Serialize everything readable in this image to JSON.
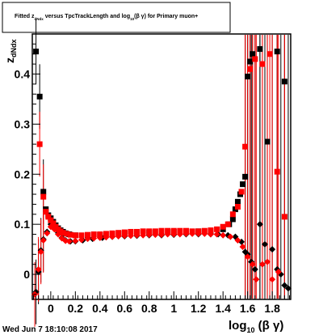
{
  "title_box": {
    "pre": "Fitted  z",
    "sub1": "dNdx",
    "mid": "  versus TpcTrackLength and log",
    "sub2": "10",
    "post": "(β γ) for Primary muon+"
  },
  "stamp": "Wed Jun  7 18:10:08 2017",
  "colors": {
    "series_black": "#000000",
    "series_red": "#ff0000",
    "frame": "#000000",
    "background": "#ffffff"
  },
  "chart_data": {
    "type": "scatter",
    "xlabel": {
      "main": "log",
      "sub": "10",
      "rest": " (β γ)"
    },
    "ylabel": {
      "main": "z",
      "sub": "dNdx"
    },
    "xlim": [
      -0.15,
      1.95
    ],
    "ylim": [
      -0.05,
      0.48
    ],
    "x_ticks": [
      {
        "value": 0,
        "label": "0"
      },
      {
        "value": 0.2,
        "label": "0.2"
      },
      {
        "value": 0.4,
        "label": "0.4"
      },
      {
        "value": 0.6,
        "label": "0.6"
      },
      {
        "value": 0.8,
        "label": "0.8"
      },
      {
        "value": 1.0,
        "label": "1"
      },
      {
        "value": 1.2,
        "label": "1.2"
      },
      {
        "value": 1.4,
        "label": "1.4"
      },
      {
        "value": 1.6,
        "label": "1.6"
      },
      {
        "value": 1.8,
        "label": "1.8"
      }
    ],
    "y_ticks": [
      {
        "value": 0,
        "label": "0"
      },
      {
        "value": 0.1,
        "label": "0.1"
      },
      {
        "value": 0.2,
        "label": "0.2"
      },
      {
        "value": 0.3,
        "label": "0.3"
      },
      {
        "value": 0.4,
        "label": "0.4"
      }
    ],
    "grid": false,
    "series": [
      {
        "color": "#000000",
        "points": [
          {
            "x": -0.12,
            "y": 0.445,
            "m": "square"
          },
          {
            "x": -0.09,
            "y": 0.355,
            "m": "square"
          },
          {
            "x": -0.06,
            "y": 0.165,
            "m": "square"
          },
          {
            "x": -0.04,
            "y": 0.13,
            "m": "square"
          },
          {
            "x": -0.02,
            "y": 0.118,
            "m": "square"
          },
          {
            "x": 0.0,
            "y": 0.112,
            "m": "square"
          },
          {
            "x": 0.02,
            "y": 0.105,
            "m": "square"
          },
          {
            "x": 0.04,
            "y": 0.098,
            "m": "square"
          },
          {
            "x": 0.06,
            "y": 0.092,
            "m": "square"
          },
          {
            "x": 0.08,
            "y": 0.088,
            "m": "square"
          },
          {
            "x": 0.1,
            "y": 0.085,
            "m": "square"
          },
          {
            "x": 0.12,
            "y": 0.082,
            "m": "square"
          },
          {
            "x": 0.15,
            "y": 0.08,
            "m": "square"
          },
          {
            "x": 0.2,
            "y": 0.078,
            "m": "square"
          },
          {
            "x": 0.3,
            "y": 0.078,
            "m": "square"
          },
          {
            "x": 0.4,
            "y": 0.079,
            "m": "square"
          },
          {
            "x": 0.5,
            "y": 0.08,
            "m": "square"
          },
          {
            "x": 0.6,
            "y": 0.082,
            "m": "square"
          },
          {
            "x": 0.7,
            "y": 0.083,
            "m": "square"
          },
          {
            "x": 0.8,
            "y": 0.084,
            "m": "square"
          },
          {
            "x": 0.9,
            "y": 0.085,
            "m": "square"
          },
          {
            "x": 1.0,
            "y": 0.085,
            "m": "square"
          },
          {
            "x": 1.1,
            "y": 0.085,
            "m": "square"
          },
          {
            "x": 1.2,
            "y": 0.086,
            "m": "square"
          },
          {
            "x": 1.3,
            "y": 0.086,
            "m": "square"
          },
          {
            "x": 1.4,
            "y": 0.09,
            "m": "square"
          },
          {
            "x": 1.45,
            "y": 0.1,
            "m": "square"
          },
          {
            "x": 1.48,
            "y": 0.11,
            "m": "square"
          },
          {
            "x": 1.5,
            "y": 0.13,
            "m": "square"
          },
          {
            "x": 1.52,
            "y": 0.145,
            "m": "square"
          },
          {
            "x": 1.54,
            "y": 0.16,
            "m": "square"
          },
          {
            "x": 1.56,
            "y": 0.18,
            "m": "square"
          },
          {
            "x": 1.58,
            "y": 0.195,
            "m": "square"
          },
          {
            "x": 1.6,
            "y": 0.395,
            "m": "square"
          },
          {
            "x": 1.62,
            "y": 0.425,
            "m": "square"
          },
          {
            "x": 1.64,
            "y": 0.44,
            "m": "square"
          },
          {
            "x": 1.7,
            "y": 0.45,
            "m": "square"
          },
          {
            "x": 1.76,
            "y": 0.265,
            "m": "square"
          },
          {
            "x": 1.84,
            "y": 0.445,
            "m": "square"
          },
          {
            "x": 1.9,
            "y": 0.385,
            "m": "square"
          },
          {
            "x": -0.12,
            "y": -0.035,
            "m": "diamond"
          },
          {
            "x": -0.1,
            "y": 0.005,
            "m": "diamond"
          },
          {
            "x": -0.08,
            "y": 0.048,
            "m": "diamond"
          },
          {
            "x": -0.06,
            "y": 0.07,
            "m": "diamond"
          },
          {
            "x": -0.03,
            "y": 0.085,
            "m": "diamond"
          },
          {
            "x": 0.0,
            "y": 0.1,
            "m": "diamond"
          },
          {
            "x": 0.03,
            "y": 0.094,
            "m": "diamond"
          },
          {
            "x": 0.06,
            "y": 0.083,
            "m": "diamond"
          },
          {
            "x": 0.09,
            "y": 0.073,
            "m": "diamond"
          },
          {
            "x": 0.12,
            "y": 0.068,
            "m": "diamond"
          },
          {
            "x": 0.16,
            "y": 0.066,
            "m": "diamond"
          },
          {
            "x": 0.2,
            "y": 0.066,
            "m": "diamond"
          },
          {
            "x": 0.26,
            "y": 0.068,
            "m": "diamond"
          },
          {
            "x": 0.34,
            "y": 0.071,
            "m": "diamond"
          },
          {
            "x": 0.42,
            "y": 0.073,
            "m": "diamond"
          },
          {
            "x": 0.5,
            "y": 0.075,
            "m": "diamond"
          },
          {
            "x": 0.6,
            "y": 0.076,
            "m": "diamond"
          },
          {
            "x": 0.7,
            "y": 0.077,
            "m": "diamond"
          },
          {
            "x": 0.8,
            "y": 0.078,
            "m": "diamond"
          },
          {
            "x": 0.9,
            "y": 0.078,
            "m": "diamond"
          },
          {
            "x": 1.0,
            "y": 0.079,
            "m": "diamond"
          },
          {
            "x": 1.1,
            "y": 0.08,
            "m": "diamond"
          },
          {
            "x": 1.2,
            "y": 0.08,
            "m": "diamond"
          },
          {
            "x": 1.3,
            "y": 0.08,
            "m": "diamond"
          },
          {
            "x": 1.36,
            "y": 0.08,
            "m": "diamond"
          },
          {
            "x": 1.44,
            "y": 0.078,
            "m": "diamond"
          },
          {
            "x": 1.5,
            "y": 0.075,
            "m": "diamond"
          },
          {
            "x": 1.55,
            "y": 0.065,
            "m": "diamond"
          },
          {
            "x": 1.58,
            "y": 0.045,
            "m": "diamond"
          },
          {
            "x": 1.6,
            "y": 0.04,
            "m": "diamond"
          },
          {
            "x": 1.63,
            "y": 0.025,
            "m": "diamond"
          },
          {
            "x": 1.66,
            "y": 0.01,
            "m": "diamond"
          },
          {
            "x": 1.7,
            "y": 0.1,
            "m": "diamond"
          },
          {
            "x": 1.74,
            "y": 0.06,
            "m": "diamond"
          },
          {
            "x": 1.8,
            "y": 0.05,
            "m": "diamond"
          },
          {
            "x": 1.84,
            "y": 0.01,
            "m": "diamond"
          },
          {
            "x": 1.87,
            "y": 0.0,
            "m": "diamond"
          },
          {
            "x": 1.9,
            "y": -0.022,
            "m": "diamond"
          },
          {
            "x": 1.93,
            "y": -0.028,
            "m": "diamond"
          }
        ]
      },
      {
        "color": "#ff0000",
        "points": [
          {
            "x": -0.09,
            "y": 0.26,
            "m": "square"
          },
          {
            "x": -0.06,
            "y": 0.155,
            "m": "square"
          },
          {
            "x": -0.04,
            "y": 0.125,
            "m": "square"
          },
          {
            "x": -0.02,
            "y": 0.115,
            "m": "square"
          },
          {
            "x": 0.0,
            "y": 0.108,
            "m": "square"
          },
          {
            "x": 0.02,
            "y": 0.102,
            "m": "square"
          },
          {
            "x": 0.04,
            "y": 0.095,
            "m": "square"
          },
          {
            "x": 0.06,
            "y": 0.09,
            "m": "square"
          },
          {
            "x": 0.08,
            "y": 0.086,
            "m": "square"
          },
          {
            "x": 0.1,
            "y": 0.083,
            "m": "square"
          },
          {
            "x": 0.13,
            "y": 0.081,
            "m": "square"
          },
          {
            "x": 0.16,
            "y": 0.079,
            "m": "square"
          },
          {
            "x": 0.2,
            "y": 0.078,
            "m": "square"
          },
          {
            "x": 0.25,
            "y": 0.078,
            "m": "square"
          },
          {
            "x": 0.3,
            "y": 0.079,
            "m": "square"
          },
          {
            "x": 0.35,
            "y": 0.08,
            "m": "square"
          },
          {
            "x": 0.4,
            "y": 0.08,
            "m": "square"
          },
          {
            "x": 0.45,
            "y": 0.081,
            "m": "square"
          },
          {
            "x": 0.5,
            "y": 0.082,
            "m": "square"
          },
          {
            "x": 0.55,
            "y": 0.083,
            "m": "square"
          },
          {
            "x": 0.6,
            "y": 0.084,
            "m": "square"
          },
          {
            "x": 0.65,
            "y": 0.085,
            "m": "square"
          },
          {
            "x": 0.7,
            "y": 0.085,
            "m": "square"
          },
          {
            "x": 0.75,
            "y": 0.086,
            "m": "square"
          },
          {
            "x": 0.8,
            "y": 0.086,
            "m": "square"
          },
          {
            "x": 0.85,
            "y": 0.086,
            "m": "square"
          },
          {
            "x": 0.9,
            "y": 0.087,
            "m": "square"
          },
          {
            "x": 0.95,
            "y": 0.087,
            "m": "square"
          },
          {
            "x": 1.0,
            "y": 0.087,
            "m": "square"
          },
          {
            "x": 1.05,
            "y": 0.087,
            "m": "square"
          },
          {
            "x": 1.1,
            "y": 0.087,
            "m": "square"
          },
          {
            "x": 1.15,
            "y": 0.086,
            "m": "square"
          },
          {
            "x": 1.2,
            "y": 0.086,
            "m": "square"
          },
          {
            "x": 1.25,
            "y": 0.087,
            "m": "square"
          },
          {
            "x": 1.3,
            "y": 0.088,
            "m": "square"
          },
          {
            "x": 1.35,
            "y": 0.09,
            "m": "square"
          },
          {
            "x": 1.4,
            "y": 0.095,
            "m": "square"
          },
          {
            "x": 1.44,
            "y": 0.1,
            "m": "square"
          },
          {
            "x": 1.48,
            "y": 0.12,
            "m": "square"
          },
          {
            "x": 1.52,
            "y": 0.135,
            "m": "square"
          },
          {
            "x": 1.55,
            "y": 0.165,
            "m": "square"
          },
          {
            "x": 1.58,
            "y": 0.255,
            "m": "square"
          },
          {
            "x": 1.62,
            "y": 0.41,
            "m": "square"
          },
          {
            "x": 1.66,
            "y": 0.43,
            "m": "square"
          },
          {
            "x": 1.72,
            "y": 0.42,
            "m": "square"
          },
          {
            "x": 1.78,
            "y": 0.44,
            "m": "square"
          },
          {
            "x": 1.84,
            "y": 0.205,
            "m": "square"
          },
          {
            "x": 1.9,
            "y": 0.115,
            "m": "square"
          },
          {
            "x": -0.13,
            "y": -0.04,
            "m": "diamond"
          },
          {
            "x": -0.1,
            "y": 0.01,
            "m": "diamond"
          },
          {
            "x": -0.08,
            "y": 0.045,
            "m": "diamond"
          },
          {
            "x": -0.06,
            "y": 0.068,
            "m": "diamond"
          },
          {
            "x": -0.03,
            "y": 0.082,
            "m": "diamond"
          },
          {
            "x": 0.0,
            "y": 0.095,
            "m": "diamond"
          },
          {
            "x": 0.03,
            "y": 0.09,
            "m": "diamond"
          },
          {
            "x": 0.06,
            "y": 0.08,
            "m": "diamond"
          },
          {
            "x": 0.09,
            "y": 0.072,
            "m": "diamond"
          },
          {
            "x": 0.12,
            "y": 0.067,
            "m": "diamond"
          },
          {
            "x": 0.15,
            "y": 0.066,
            "m": "diamond"
          },
          {
            "x": 0.2,
            "y": 0.067,
            "m": "diamond"
          },
          {
            "x": 0.25,
            "y": 0.069,
            "m": "diamond"
          },
          {
            "x": 0.3,
            "y": 0.071,
            "m": "diamond"
          },
          {
            "x": 0.35,
            "y": 0.072,
            "m": "diamond"
          },
          {
            "x": 0.4,
            "y": 0.073,
            "m": "diamond"
          },
          {
            "x": 0.45,
            "y": 0.074,
            "m": "diamond"
          },
          {
            "x": 0.5,
            "y": 0.075,
            "m": "diamond"
          },
          {
            "x": 0.55,
            "y": 0.076,
            "m": "diamond"
          },
          {
            "x": 0.6,
            "y": 0.077,
            "m": "diamond"
          },
          {
            "x": 0.65,
            "y": 0.077,
            "m": "diamond"
          },
          {
            "x": 0.7,
            "y": 0.078,
            "m": "diamond"
          },
          {
            "x": 0.75,
            "y": 0.078,
            "m": "diamond"
          },
          {
            "x": 0.8,
            "y": 0.079,
            "m": "diamond"
          },
          {
            "x": 0.85,
            "y": 0.079,
            "m": "diamond"
          },
          {
            "x": 0.9,
            "y": 0.079,
            "m": "diamond"
          },
          {
            "x": 0.95,
            "y": 0.08,
            "m": "diamond"
          },
          {
            "x": 1.0,
            "y": 0.08,
            "m": "diamond"
          },
          {
            "x": 1.05,
            "y": 0.08,
            "m": "diamond"
          },
          {
            "x": 1.1,
            "y": 0.081,
            "m": "diamond"
          },
          {
            "x": 1.15,
            "y": 0.081,
            "m": "diamond"
          },
          {
            "x": 1.2,
            "y": 0.081,
            "m": "diamond"
          },
          {
            "x": 1.25,
            "y": 0.081,
            "m": "diamond"
          },
          {
            "x": 1.3,
            "y": 0.08,
            "m": "diamond"
          },
          {
            "x": 1.35,
            "y": 0.08,
            "m": "diamond"
          },
          {
            "x": 1.4,
            "y": 0.078,
            "m": "diamond"
          },
          {
            "x": 1.46,
            "y": 0.075,
            "m": "diamond"
          },
          {
            "x": 1.52,
            "y": 0.068,
            "m": "diamond"
          },
          {
            "x": 1.56,
            "y": 0.055,
            "m": "diamond"
          },
          {
            "x": 1.6,
            "y": 0.035,
            "m": "diamond"
          },
          {
            "x": 1.64,
            "y": 0.02,
            "m": "diamond"
          },
          {
            "x": 1.67,
            "y": -0.01,
            "m": "diamond"
          },
          {
            "x": 1.72,
            "y": 0.02,
            "m": "diamond"
          },
          {
            "x": 1.76,
            "y": 0.025,
            "m": "diamond"
          },
          {
            "x": 1.8,
            "y": -0.01,
            "m": "diamond"
          },
          {
            "x": 1.85,
            "y": 0.005,
            "m": "diamond"
          }
        ]
      }
    ]
  }
}
